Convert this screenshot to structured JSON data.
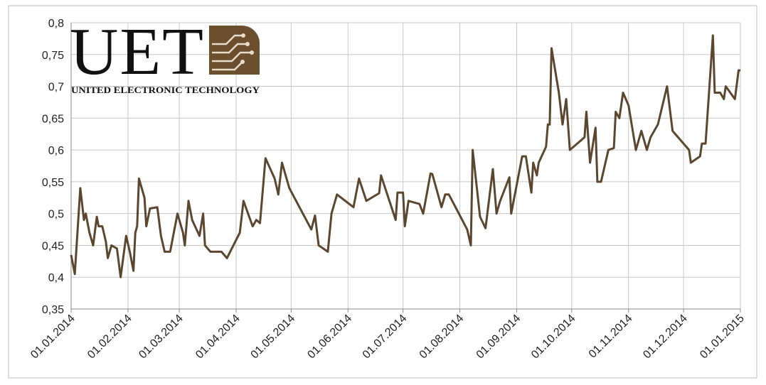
{
  "logo": {
    "title": "UET",
    "subtitle": "UNITED ELECTRONIC TECHNOLOGY"
  },
  "chart_data": {
    "type": "line",
    "color": "#5b4630",
    "grid": true,
    "xlim": [
      "01.01.2014",
      "01.01.2015"
    ],
    "xticks": [
      "01.01.2014",
      "01.02.2014",
      "01.03.2014",
      "01.04.2014",
      "01.05.2014",
      "01.06.2014",
      "01.07.2014",
      "01.08.2014",
      "01.09.2014",
      "01.10.2014",
      "01.11.2014",
      "01.12.2014",
      "01.01.2015"
    ],
    "ylim": [
      0.35,
      0.8
    ],
    "yticks": [
      {
        "value": 0.35,
        "label": "0,35"
      },
      {
        "value": 0.4,
        "label": "0,4"
      },
      {
        "value": 0.45,
        "label": "0,45"
      },
      {
        "value": 0.5,
        "label": "0,5"
      },
      {
        "value": 0.55,
        "label": "0,55"
      },
      {
        "value": 0.6,
        "label": "0,6"
      },
      {
        "value": 0.65,
        "label": "0,65"
      },
      {
        "value": 0.7,
        "label": "0,7"
      },
      {
        "value": 0.75,
        "label": "0,75"
      },
      {
        "value": 0.8,
        "label": "0,8"
      }
    ],
    "x": [
      "01.01.2014",
      "03.01.2014",
      "06.01.2014",
      "08.01.2014",
      "09.01.2014",
      "11.01.2014",
      "13.01.2014",
      "15.01.2014",
      "16.01.2014",
      "18.01.2014",
      "20.01.2014",
      "21.01.2014",
      "23.01.2014",
      "26.01.2014",
      "28.01.2014",
      "31.01.2014",
      "02.02.2014",
      "04.02.2014",
      "05.02.2014",
      "06.02.2014",
      "07.02.2014",
      "10.02.2014",
      "11.02.2014",
      "13.02.2014",
      "17.02.2014",
      "19.02.2014",
      "21.02.2014",
      "24.02.2014",
      "28.02.2014",
      "03.03.2014",
      "04.03.2014",
      "06.03.2014",
      "08.03.2014",
      "12.03.2014",
      "14.03.2014",
      "15.03.2014",
      "18.03.2014",
      "24.03.2014",
      "27.03.2014",
      "03.04.2014",
      "05.04.2014",
      "10.04.2014",
      "12.04.2014",
      "14.04.2014",
      "17.04.2014",
      "22.04.2014",
      "24.04.2014",
      "26.04.2014",
      "30.04.2014",
      "12.05.2014",
      "14.05.2014",
      "16.05.2014",
      "21.05.2014",
      "23.05.2014",
      "26.05.2014",
      "04.06.2014",
      "07.06.2014",
      "11.06.2014",
      "18.06.2014",
      "19.06.2014",
      "27.06.2014",
      "28.06.2014",
      "01.07.2014",
      "02.07.2014",
      "04.07.2014",
      "10.07.2014",
      "12.07.2014",
      "16.07.2014",
      "17.07.2014",
      "22.07.2014",
      "24.07.2014",
      "26.07.2014",
      "05.08.2014",
      "07.08.2014",
      "08.08.2014",
      "12.08.2014",
      "15.08.2014",
      "19.08.2014",
      "21.08.2014",
      "23.08.2014",
      "28.08.2014",
      "29.08.2014",
      "04.09.2014",
      "06.09.2014",
      "09.09.2014",
      "10.09.2014",
      "12.09.2014",
      "13.09.2014",
      "17.09.2014",
      "18.09.2014",
      "19.09.2014",
      "20.09.2014",
      "24.09.2014",
      "26.09.2014",
      "28.09.2014",
      "30.09.2014",
      "08.10.2014",
      "09.10.2014",
      "11.10.2014",
      "14.10.2014",
      "15.10.2014",
      "17.10.2014",
      "21.10.2014",
      "24.10.2014",
      "25.10.2014",
      "27.10.2014",
      "29.10.2014",
      "01.11.2014",
      "05.11.2014",
      "08.11.2014",
      "11.11.2014",
      "13.11.2014",
      "17.11.2014",
      "22.11.2014",
      "25.11.2014",
      "04.12.2014",
      "05.12.2014",
      "10.12.2014",
      "11.12.2014",
      "13.12.2014",
      "17.12.2014",
      "18.12.2014",
      "21.12.2014",
      "23.12.2014",
      "24.12.2014",
      "29.12.2014",
      "31.12.2014",
      "01.01.2015"
    ],
    "values": [
      0.435,
      0.405,
      0.54,
      0.49,
      0.5,
      0.47,
      0.45,
      0.495,
      0.48,
      0.48,
      0.455,
      0.43,
      0.45,
      0.445,
      0.4,
      0.465,
      0.44,
      0.41,
      0.47,
      0.48,
      0.555,
      0.525,
      0.48,
      0.508,
      0.51,
      0.465,
      0.44,
      0.44,
      0.5,
      0.47,
      0.45,
      0.52,
      0.49,
      0.465,
      0.5,
      0.45,
      0.44,
      0.44,
      0.43,
      0.47,
      0.52,
      0.48,
      0.49,
      0.485,
      0.587,
      0.555,
      0.53,
      0.58,
      0.54,
      0.475,
      0.497,
      0.45,
      0.44,
      0.5,
      0.53,
      0.51,
      0.555,
      0.52,
      0.532,
      0.56,
      0.49,
      0.533,
      0.533,
      0.48,
      0.52,
      0.515,
      0.5,
      0.563,
      0.562,
      0.51,
      0.53,
      0.53,
      0.475,
      0.45,
      0.6,
      0.495,
      0.477,
      0.57,
      0.5,
      0.52,
      0.557,
      0.5,
      0.59,
      0.59,
      0.533,
      0.58,
      0.56,
      0.58,
      0.605,
      0.64,
      0.64,
      0.76,
      0.69,
      0.64,
      0.68,
      0.6,
      0.62,
      0.66,
      0.58,
      0.635,
      0.55,
      0.55,
      0.6,
      0.603,
      0.66,
      0.65,
      0.69,
      0.67,
      0.6,
      0.63,
      0.6,
      0.62,
      0.64,
      0.7,
      0.63,
      0.6,
      0.58,
      0.59,
      0.61,
      0.61,
      0.78,
      0.69,
      0.69,
      0.68,
      0.7,
      0.68,
      0.725,
      0.725
    ]
  }
}
